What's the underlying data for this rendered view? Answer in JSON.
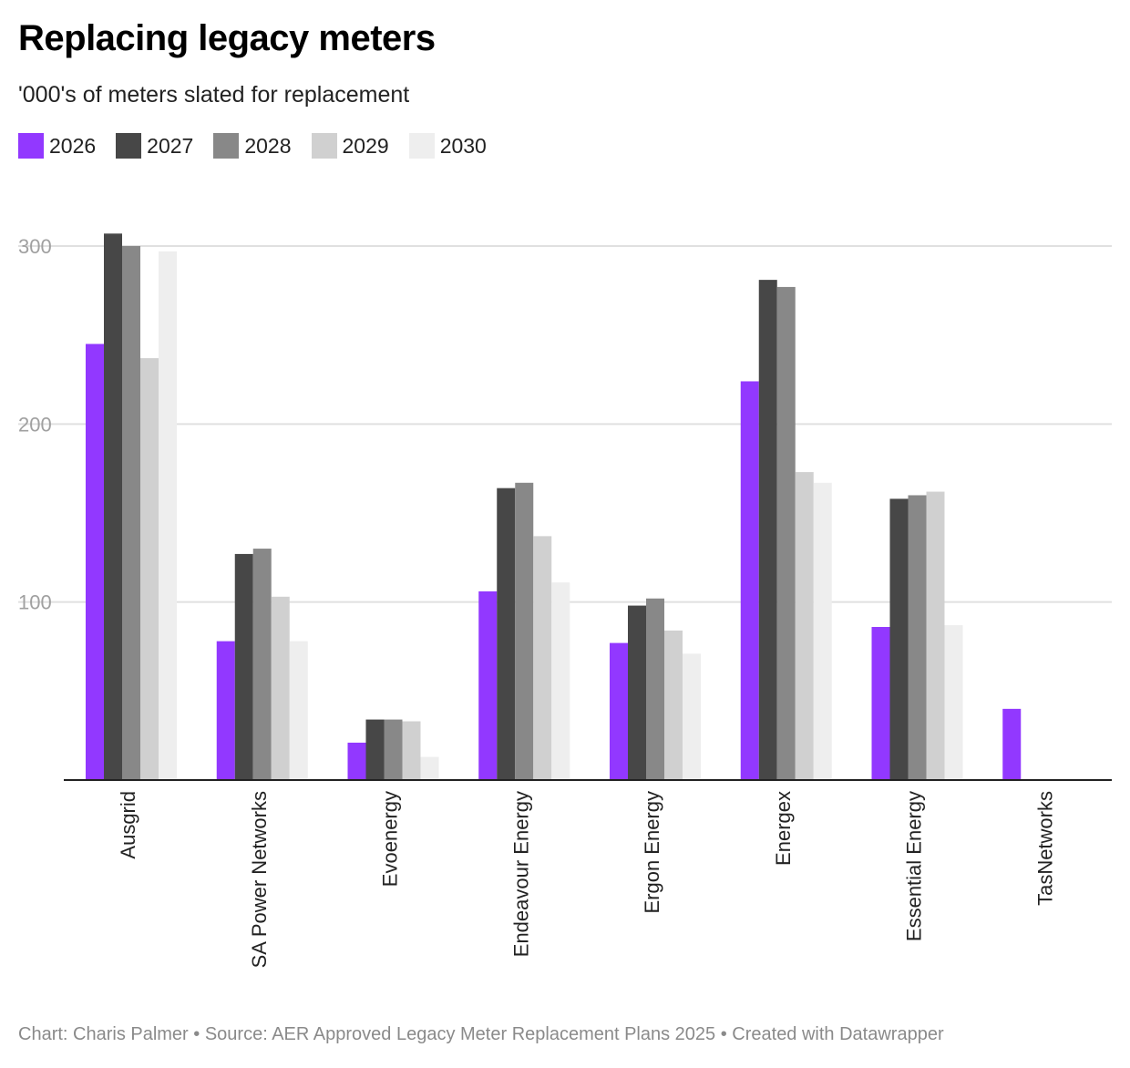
{
  "title": "Replacing legacy meters",
  "subtitle": "'000's of meters slated for replacement",
  "footer": "Chart: Charis Palmer • Source: AER Approved Legacy Meter Replacement Plans 2025 • Created with Datawrapper",
  "legend": [
    {
      "label": "2026",
      "color": "#9238ff"
    },
    {
      "label": "2027",
      "color": "#474747"
    },
    {
      "label": "2028",
      "color": "#888888"
    },
    {
      "label": "2029",
      "color": "#d0d0d0"
    },
    {
      "label": "2030",
      "color": "#eeeeee"
    }
  ],
  "chart_data": {
    "type": "bar",
    "title": "Replacing legacy meters",
    "subtitle": "'000's of meters slated for replacement",
    "xlabel": "",
    "ylabel": "",
    "ylim": [
      0,
      300
    ],
    "yticks": [
      100,
      200,
      300
    ],
    "grid": true,
    "legend_position": "top-left",
    "categories": [
      "Ausgrid",
      "SA Power Networks",
      "Evoenergy",
      "Endeavour Energy",
      "Ergon Energy",
      "Energex",
      "Essential Energy",
      "TasNetworks"
    ],
    "series": [
      {
        "name": "2026",
        "color": "#9238ff",
        "values": [
          245,
          78,
          21,
          106,
          77,
          224,
          86,
          40
        ]
      },
      {
        "name": "2027",
        "color": "#474747",
        "values": [
          307,
          127,
          34,
          164,
          98,
          281,
          158,
          null
        ]
      },
      {
        "name": "2028",
        "color": "#888888",
        "values": [
          300,
          130,
          34,
          167,
          102,
          277,
          160,
          null
        ]
      },
      {
        "name": "2029",
        "color": "#d0d0d0",
        "values": [
          237,
          103,
          33,
          137,
          84,
          173,
          162,
          null
        ]
      },
      {
        "name": "2030",
        "color": "#eeeeee",
        "values": [
          297,
          78,
          13,
          111,
          71,
          167,
          87,
          null
        ]
      }
    ]
  }
}
